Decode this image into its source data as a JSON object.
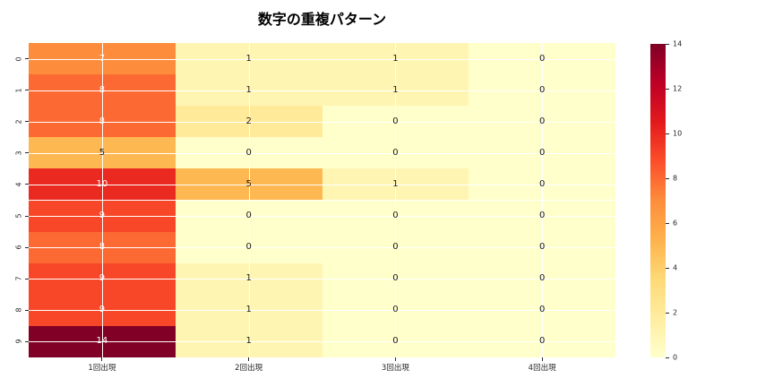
{
  "chart_data": {
    "type": "heatmap",
    "title": "数字の重複パターン",
    "row_labels": [
      "0",
      "1",
      "2",
      "3",
      "4",
      "5",
      "6",
      "7",
      "8",
      "9"
    ],
    "col_labels": [
      "1回出現",
      "2回出現",
      "3回出現",
      "4回出現"
    ],
    "values": [
      [
        7,
        1,
        1,
        0
      ],
      [
        8,
        1,
        1,
        0
      ],
      [
        8,
        2,
        0,
        0
      ],
      [
        5,
        0,
        0,
        0
      ],
      [
        10,
        5,
        1,
        0
      ],
      [
        9,
        0,
        0,
        0
      ],
      [
        8,
        0,
        0,
        0
      ],
      [
        9,
        1,
        0,
        0
      ],
      [
        9,
        1,
        0,
        0
      ],
      [
        14,
        1,
        0,
        0
      ]
    ],
    "vmin": 0,
    "vmax": 14,
    "colormap_name": "YlOrRd",
    "colormap_stops": [
      "#ffffcc",
      "#ffeda0",
      "#fed976",
      "#feb24c",
      "#fd8d3c",
      "#fc4e2a",
      "#e31a1c",
      "#bd0026",
      "#800026"
    ],
    "colorbar_ticks": [
      14,
      12,
      10,
      8,
      6,
      4,
      2,
      0
    ],
    "grid": true,
    "legend_position": "right",
    "annotation_light_text": "#ffffff",
    "annotation_dark_text": "#1a1a1a",
    "tick_color": "#262626"
  }
}
